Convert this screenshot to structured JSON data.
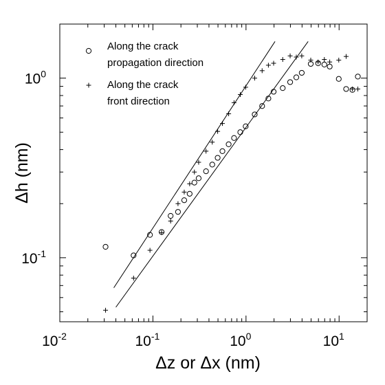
{
  "chart_data": {
    "type": "scatter",
    "xscale": "log",
    "yscale": "log",
    "xlim": [
      0.01,
      20
    ],
    "ylim": [
      0.044,
      2.0
    ],
    "xlabel": "Δz or Δx (nm)",
    "ylabel": "Δh (nm)",
    "title": "",
    "grid": false,
    "legend_placement": "top-left",
    "x_ticks": [
      {
        "base": "10",
        "exp": "-2",
        "value": 0.01
      },
      {
        "base": "10",
        "exp": "-1",
        "value": 0.1
      },
      {
        "base": "10",
        "exp": "0",
        "value": 1
      },
      {
        "base": "10",
        "exp": "1",
        "value": 10
      }
    ],
    "y_ticks": [
      {
        "base": "10",
        "exp": "-1",
        "value": 0.1
      },
      {
        "base": "10",
        "exp": "0",
        "value": 1
      }
    ],
    "series": [
      {
        "name": "Along the crack\npropagation direction",
        "legend_lines": [
          "Along the crack",
          "propagation direction"
        ],
        "marker": "circle",
        "x": [
          0.031,
          0.062,
          0.093,
          0.124,
          0.155,
          0.186,
          0.217,
          0.248,
          0.279,
          0.31,
          0.372,
          0.434,
          0.496,
          0.558,
          0.651,
          0.744,
          0.868,
          0.992,
          1.24,
          1.49,
          1.74,
          1.98,
          2.48,
          2.98,
          3.47,
          3.97,
          4.96,
          5.95,
          6.94,
          7.93,
          9.92,
          11.9,
          13.9,
          15.9
        ],
        "y": [
          0.115,
          0.103,
          0.134,
          0.139,
          0.171,
          0.18,
          0.209,
          0.227,
          0.262,
          0.277,
          0.303,
          0.33,
          0.36,
          0.392,
          0.428,
          0.464,
          0.5,
          0.539,
          0.628,
          0.699,
          0.77,
          0.84,
          0.88,
          0.95,
          1.01,
          1.07,
          1.2,
          1.21,
          1.19,
          1.16,
          0.99,
          0.87,
          0.86,
          1.02
        ]
      },
      {
        "name": "Along the crack\nfront direction",
        "legend_lines": [
          "Along the crack",
          "front direction"
        ],
        "marker": "plus",
        "x": [
          0.031,
          0.062,
          0.093,
          0.124,
          0.155,
          0.186,
          0.217,
          0.248,
          0.279,
          0.31,
          0.372,
          0.434,
          0.496,
          0.558,
          0.651,
          0.744,
          0.868,
          0.992,
          1.24,
          1.49,
          1.74,
          1.98,
          2.48,
          2.98,
          3.47,
          3.97,
          4.96,
          5.95,
          6.94,
          7.93,
          9.92,
          11.9,
          13.9,
          15.9
        ],
        "y": [
          0.051,
          0.077,
          0.11,
          0.138,
          0.16,
          0.2,
          0.232,
          0.258,
          0.3,
          0.34,
          0.392,
          0.44,
          0.505,
          0.559,
          0.633,
          0.73,
          0.81,
          0.89,
          1.0,
          1.1,
          1.18,
          1.21,
          1.27,
          1.33,
          1.31,
          1.33,
          1.26,
          1.23,
          1.27,
          1.23,
          1.26,
          1.32,
          0.87,
          0.87
        ]
      }
    ],
    "fit_lines": [
      {
        "x": [
          0.038,
          2.05
        ],
        "y": [
          0.068,
          1.6
        ]
      },
      {
        "x": [
          0.04,
          4.65
        ],
        "y": [
          0.053,
          1.6
        ]
      }
    ]
  }
}
